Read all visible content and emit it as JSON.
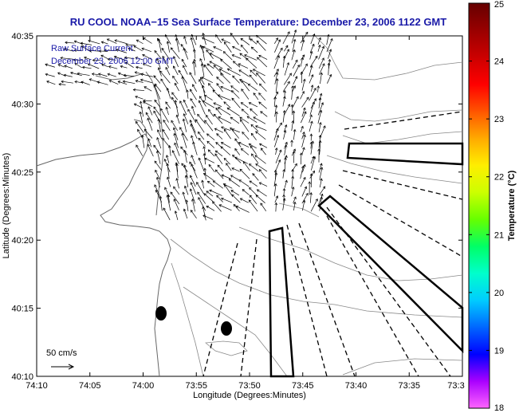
{
  "title": "RU COOL  NOAA−15  Sea Surface Temperature:  December 23, 2006 1122 GMT",
  "legend": {
    "line1": "Raw Surface Current",
    "line2": "December 23, 2006 12:00 GMT"
  },
  "scale_label": "50 cm/s",
  "chart_data": {
    "type": "map",
    "xlabel": "Longitude (Degrees:Minutes)",
    "ylabel": "Latitude (Degrees:Minutes)",
    "x_ticks": [
      "74:10",
      "74:05",
      "74:00",
      "73:55",
      "73:50",
      "73:45",
      "73:40",
      "73:35",
      "73:3"
    ],
    "y_ticks": [
      "40:35",
      "40:30",
      "40:25",
      "40:20",
      "40:15",
      "40:10"
    ],
    "colorbar": {
      "label": "Temperature (°C)",
      "min": 18,
      "max": 25,
      "ticks": [
        "25",
        "24",
        "23",
        "22",
        "21",
        "20",
        "19",
        "18"
      ],
      "colors": [
        "#ff66ff",
        "#aa00ff",
        "#0000ff",
        "#0066ff",
        "#00ccff",
        "#00ffcc",
        "#00ff66",
        "#66ff00",
        "#ccff00",
        "#ffee00",
        "#ffaa00",
        "#ff5500",
        "#ff0000",
        "#cc0000",
        "#990000",
        "#660000"
      ]
    }
  }
}
